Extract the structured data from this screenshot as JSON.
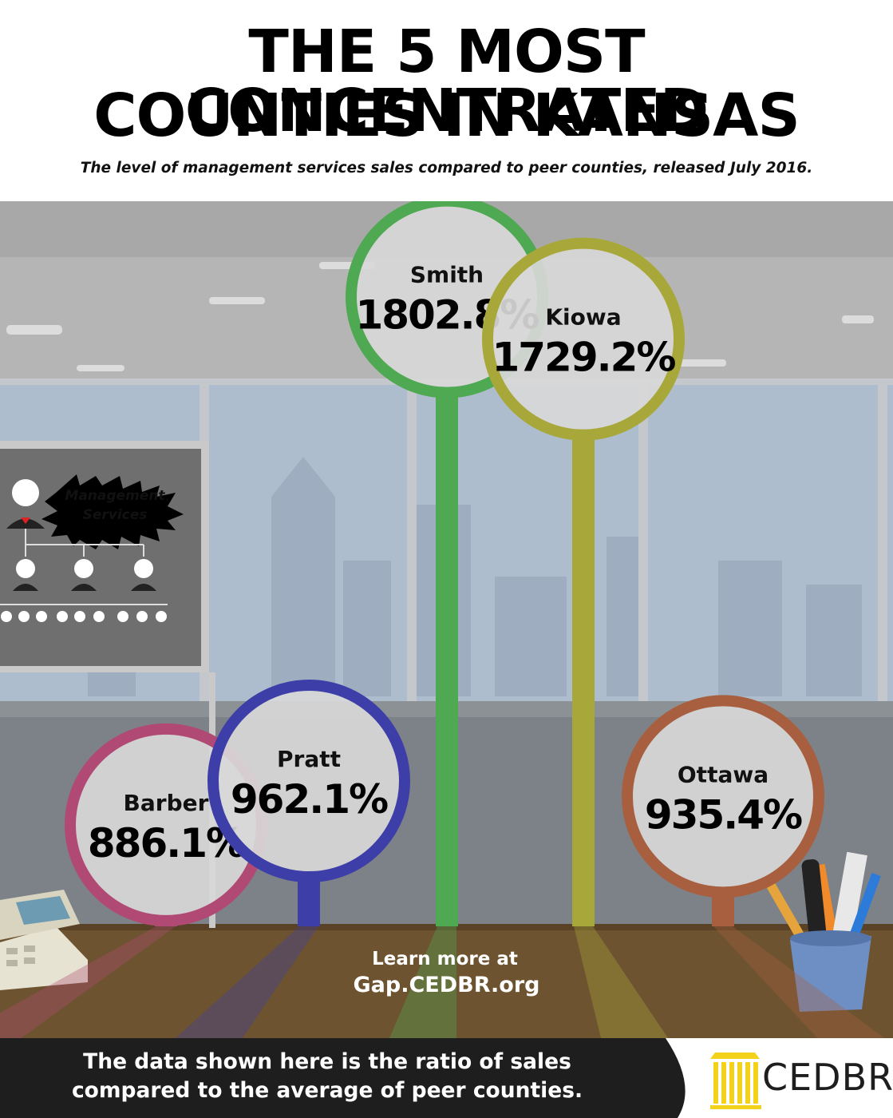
{
  "title_line1": "THE 5 MOST CONCENTRATED",
  "title_line2": "COUNTIES IN KANSAS",
  "subtitle": "The level of management services sales compared to peer counties, released July 2016.",
  "sign_line1": "Management",
  "sign_line2": "Services",
  "learn_more_line1": "Learn more at",
  "learn_more_line2": "Gap.CEDBR.org",
  "footnote_line1": "The data shown here is the ratio of sales",
  "footnote_line2": "compared to the average of peer counties.",
  "logo_text": "CEDBR",
  "colors": {
    "Barber": "#b04a74",
    "Pratt": "#3d3ea8",
    "Smith": "#4fa852",
    "Kiowa": "#a8a83a",
    "Ottawa": "#a85f3f"
  },
  "chart_data": {
    "type": "bar",
    "categories": [
      "Barber",
      "Pratt",
      "Smith",
      "Kiowa",
      "Ottawa"
    ],
    "values": [
      886.1,
      962.1,
      1802.8,
      1729.2,
      935.4
    ],
    "value_labels": [
      "886.1%",
      "962.1%",
      "1802.8%",
      "1729.2%",
      "935.4%"
    ],
    "unit": "%",
    "title": "THE 5 MOST CONCENTRATED COUNTIES IN KANSAS",
    "subtitle": "The level of management services sales compared to peer counties, released July 2016."
  }
}
